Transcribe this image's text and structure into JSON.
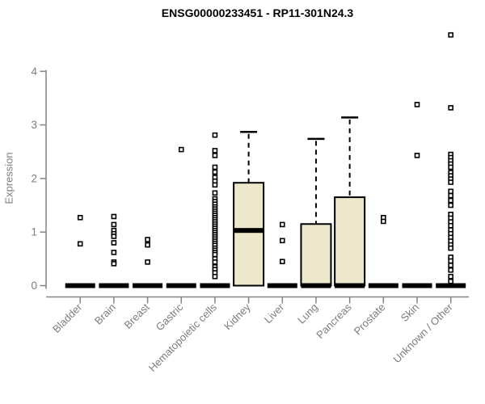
{
  "page_title": "ENSG00000233451 - RP11-301N24.3",
  "chart_data": {
    "type": "boxplot",
    "title": "ENSG00000233451 - RP11-301N24.3",
    "xlabel": "",
    "ylabel": "Expression",
    "ylim": [
      0,
      4.8
    ],
    "yticks": [
      0,
      1,
      2,
      3,
      4
    ],
    "grid": false,
    "legend": "none",
    "colors": {
      "box_fill": "#EDE7CB",
      "box_stroke": "#000000",
      "median": "#000000",
      "outlier_stroke": "#000000",
      "outlier_fill": "#ffffff",
      "axis": "#848484",
      "tick_text": "#7d7d7d",
      "title_text": "#000000"
    },
    "categories": [
      "Bladder",
      "Brain",
      "Breast",
      "Gastric",
      "Hematopoietic cells",
      "Kidney",
      "Liver",
      "Lung",
      "Pancreas",
      "Prostate",
      "Skin",
      "Unknown / Other"
    ],
    "boxes": [
      {
        "label": "Bladder",
        "q1": 0,
        "median": 0,
        "q3": 0,
        "whisker_low": 0,
        "whisker_high": 0,
        "outliers": [
          1.27,
          0.78
        ]
      },
      {
        "label": "Brain",
        "q1": 0,
        "median": 0,
        "q3": 0,
        "whisker_low": 0,
        "whisker_high": 0,
        "outliers": [
          1.29,
          1.14,
          1.03,
          0.97,
          0.92,
          0.8,
          0.62,
          0.44,
          0.41
        ]
      },
      {
        "label": "Breast",
        "q1": 0,
        "median": 0,
        "q3": 0,
        "whisker_low": 0,
        "whisker_high": 0,
        "outliers": [
          0.86,
          0.76,
          0.44
        ]
      },
      {
        "label": "Gastric",
        "q1": 0,
        "median": 0,
        "q3": 0,
        "whisker_low": 0,
        "whisker_high": 0,
        "outliers": [
          2.54
        ]
      },
      {
        "label": "Hematopoietic cells",
        "q1": 0,
        "median": 0,
        "q3": 0,
        "whisker_low": 0,
        "whisker_high": 0,
        "outliers": [
          2.81,
          2.52,
          2.43,
          2.21,
          2.12,
          2.02,
          1.95,
          1.88,
          1.73,
          1.62,
          1.57,
          1.52,
          1.47,
          1.43,
          1.39,
          1.35,
          1.31,
          1.27,
          1.23,
          1.19,
          1.15,
          1.11,
          1.07,
          1.03,
          0.99,
          0.95,
          0.91,
          0.87,
          0.83,
          0.79,
          0.75,
          0.7,
          0.66,
          0.62,
          0.58,
          0.5,
          0.44,
          0.35,
          0.3,
          0.24,
          0.17
        ]
      },
      {
        "label": "Kidney",
        "q1": 0,
        "median": 1.03,
        "q3": 1.92,
        "whisker_low": 0,
        "whisker_high": 2.87,
        "outliers": []
      },
      {
        "label": "Liver",
        "q1": 0,
        "median": 0,
        "q3": 0,
        "whisker_low": 0,
        "whisker_high": 0,
        "outliers": [
          1.14,
          0.84,
          0.45
        ]
      },
      {
        "label": "Lung",
        "q1": 0,
        "median": 0,
        "q3": 1.15,
        "whisker_low": 0,
        "whisker_high": 2.74,
        "outliers": []
      },
      {
        "label": "Pancreas",
        "q1": 0,
        "median": 0,
        "q3": 1.65,
        "whisker_low": 0,
        "whisker_high": 3.14,
        "outliers": []
      },
      {
        "label": "Prostate",
        "q1": 0,
        "median": 0,
        "q3": 0,
        "whisker_low": 0,
        "whisker_high": 0,
        "outliers": [
          1.27,
          1.2
        ]
      },
      {
        "label": "Skin",
        "q1": 0,
        "median": 0,
        "q3": 0,
        "whisker_low": 0,
        "whisker_high": 0,
        "outliers": [
          3.38,
          2.43
        ]
      },
      {
        "label": "Unknown / Other",
        "q1": 0,
        "median": 0,
        "q3": 0,
        "whisker_low": 0,
        "whisker_high": 0,
        "outliers": [
          4.68,
          3.32,
          2.45,
          2.39,
          2.33,
          2.27,
          2.21,
          2.11,
          2.05,
          1.99,
          1.93,
          1.76,
          1.68,
          1.59,
          1.5,
          1.33,
          1.26,
          1.19,
          1.12,
          1.04,
          0.97,
          0.9,
          0.83,
          0.76,
          0.7,
          0.53,
          0.46,
          0.38,
          0.29,
          0.17,
          0.08
        ]
      }
    ]
  }
}
